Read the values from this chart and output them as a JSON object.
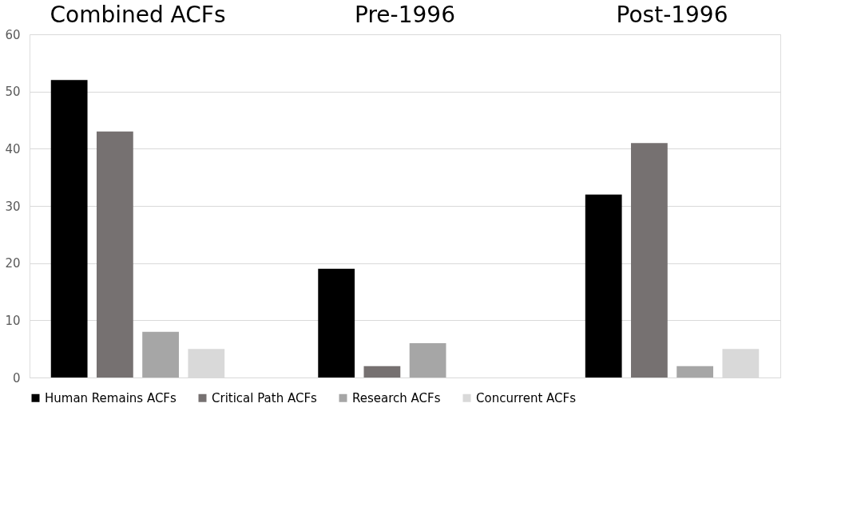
{
  "chart_data": {
    "type": "bar",
    "categories": [
      "Combined ACFs",
      "Pre-1996",
      "Post-1996"
    ],
    "series": [
      {
        "name": "Human Remains ACFs",
        "color": "#000000",
        "values": [
          52,
          19,
          32
        ]
      },
      {
        "name": "Critical Path ACFs",
        "color": "#767171",
        "values": [
          43,
          2,
          41
        ]
      },
      {
        "name": "Research ACFs",
        "color": "#a6a6a6",
        "values": [
          8,
          6,
          2
        ]
      },
      {
        "name": "Concurrent ACFs",
        "color": "#d9d9d9",
        "values": [
          5,
          0,
          5
        ]
      }
    ],
    "ylim": [
      0,
      60
    ],
    "yticks": [
      0,
      10,
      20,
      30,
      40,
      50,
      60
    ],
    "grid": "y",
    "legend": "bottom"
  }
}
